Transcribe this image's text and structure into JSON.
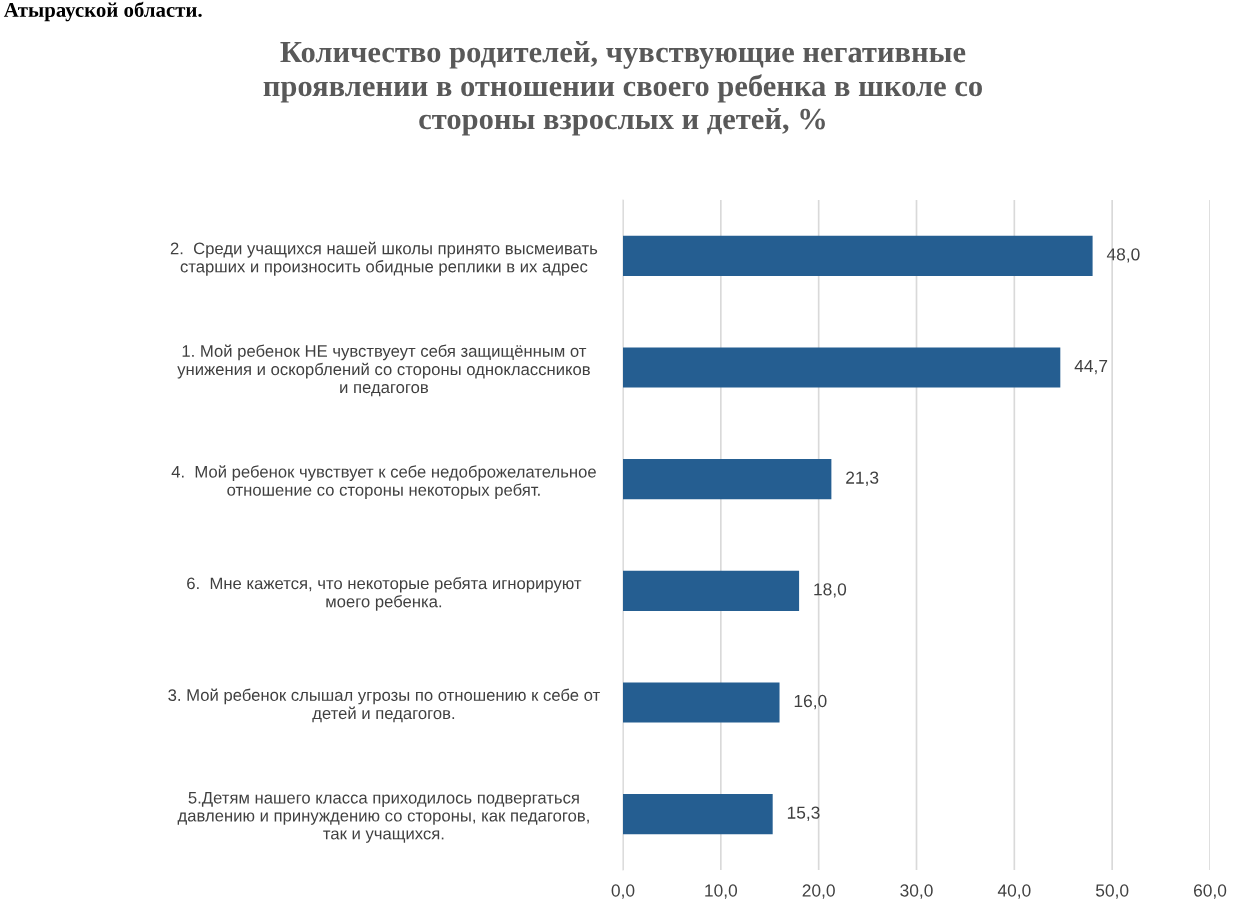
{
  "chart_data": {
    "type": "bar",
    "orientation": "horizontal",
    "title": "Количество родителей, чувствующие негативные\nпроявлении в отношении своего ребенка в школе со\nстороны взрослых и детей, %",
    "annotations": [
      "Атырауской области."
    ],
    "categories": [
      "2.  Среди учащихся нашей школы принято высмеивать\nстарших и произносить обидные реплики в их адрес",
      "1. Мой ребенок НЕ чувствуеут себя защищённым от\nунижения и оскорблений со стороны одноклассников\nи педагогов",
      "4.  Мой ребенок чувствует к себе недоброжелательное\nотношение со стороны некоторых ребят.",
      "6.  Мне кажется, что некоторые ребята игнорируют\nмоего ребенка.",
      "3. Мой ребенок слышал угрозы по отношению к себе от\nдетей и педагогов.",
      "5.Детям нашего класса приходилось подвергаться\nдавлению и принуждению со стороны, как педагогов,\nтак и учащихся."
    ],
    "values": [
      48.0,
      44.7,
      21.3,
      18.0,
      16.0,
      15.3
    ],
    "value_labels": [
      "48,0",
      "44,7",
      "21,3",
      "18,0",
      "16,0",
      "15,3"
    ],
    "color": "#255e91",
    "xlim": [
      0,
      60
    ],
    "xticks": [
      {
        "value": 0,
        "label": "0,0"
      },
      {
        "value": 10,
        "label": "10,0"
      },
      {
        "value": 20,
        "label": "20,0"
      },
      {
        "value": 30,
        "label": "30,0"
      },
      {
        "value": 40,
        "label": "40,0"
      },
      {
        "value": 50,
        "label": "50,0"
      },
      {
        "value": 60,
        "label": "60,0"
      }
    ],
    "grid": "x"
  }
}
